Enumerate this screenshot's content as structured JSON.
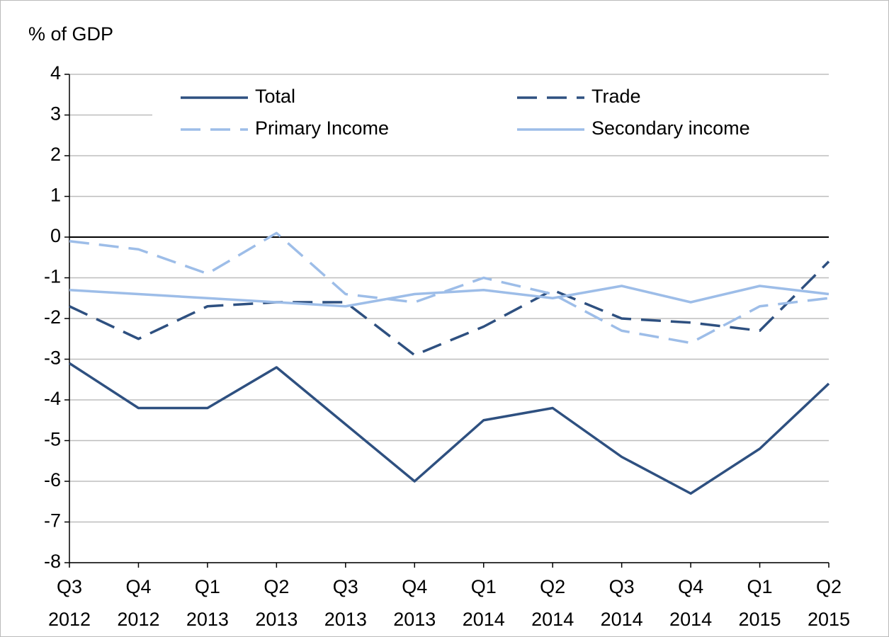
{
  "chart_data": {
    "type": "line",
    "y_label": "% of GDP",
    "categories": [
      [
        "Q3",
        "2012"
      ],
      [
        "Q4",
        "2012"
      ],
      [
        "Q1",
        "2013"
      ],
      [
        "Q2",
        "2013"
      ],
      [
        "Q3",
        "2013"
      ],
      [
        "Q4",
        "2013"
      ],
      [
        "Q1",
        "2014"
      ],
      [
        "Q2",
        "2014"
      ],
      [
        "Q3",
        "2014"
      ],
      [
        "Q4",
        "2014"
      ],
      [
        "Q1",
        "2015"
      ],
      [
        "Q2",
        "2015"
      ]
    ],
    "series": [
      {
        "name": "Total",
        "color": "#2e5080",
        "style": "solid",
        "values": [
          -3.1,
          -4.2,
          -4.2,
          -3.2,
          -4.6,
          -6.0,
          -4.5,
          -4.2,
          -5.4,
          -6.3,
          -5.2,
          -3.6
        ]
      },
      {
        "name": "Trade",
        "color": "#2e5080",
        "style": "dashed",
        "values": [
          -1.7,
          -2.5,
          -1.7,
          -1.6,
          -1.6,
          -2.9,
          -2.2,
          -1.3,
          -2.0,
          -2.1,
          -2.3,
          -0.6
        ]
      },
      {
        "name": "Primary Income",
        "color": "#9dbde8",
        "style": "dashed",
        "values": [
          -0.1,
          -0.3,
          -0.9,
          0.1,
          -1.4,
          -1.6,
          -1.0,
          -1.4,
          -2.3,
          -2.6,
          -1.7,
          -1.5
        ]
      },
      {
        "name": "Secondary income",
        "color": "#9dbde8",
        "style": "solid",
        "values": [
          -1.3,
          -1.4,
          -1.5,
          -1.6,
          -1.7,
          -1.4,
          -1.3,
          -1.5,
          -1.2,
          -1.6,
          -1.2,
          -1.4
        ]
      }
    ],
    "ylim": [
      -8,
      4
    ],
    "yticks": [
      4,
      3,
      2,
      1,
      0,
      -1,
      -2,
      -3,
      -4,
      -5,
      -6,
      -7,
      -8
    ],
    "grid": true
  }
}
